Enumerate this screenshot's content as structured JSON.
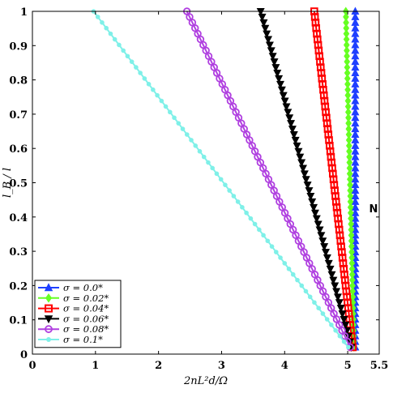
{
  "chart_data": {
    "type": "line",
    "xlabel": "2nL²d/Ω",
    "ylabel": "l_B / l",
    "xlim": [
      0,
      5.5
    ],
    "ylim": [
      0,
      1
    ],
    "xticks": [
      "0",
      "1",
      "2",
      "3",
      "4",
      "5",
      "5.5"
    ],
    "xtick_values": [
      0,
      1,
      2,
      3,
      4,
      5,
      5.5
    ],
    "yticks": [
      "0",
      "0.1",
      "0.2",
      "0.3",
      "0.4",
      "0.5",
      "0.6",
      "0.7",
      "0.8",
      "0.9",
      "1"
    ],
    "ytick_values": [
      0,
      0.1,
      0.2,
      0.3,
      0.4,
      0.5,
      0.6,
      0.7,
      0.8,
      0.9,
      1
    ],
    "grid": false,
    "legend_position": "bottom-left",
    "annotation": "N",
    "series": [
      {
        "name": "σ = 0.0*",
        "color": "#1f3fff",
        "marker": "triangle-up",
        "x_top": 5.12,
        "x_bottom": 5.12
      },
      {
        "name": "σ = 0.02*",
        "color": "#66ff22",
        "marker": "diamond",
        "x_top": 4.97,
        "x_bottom": 5.1
      },
      {
        "name": "σ = 0.04*",
        "color": "#ff0000",
        "marker": "square",
        "x_top": 4.47,
        "x_bottom": 5.08
      },
      {
        "name": "σ = 0.06*",
        "color": "#000000",
        "marker": "triangle-down",
        "x_top": 3.62,
        "x_bottom": 5.06
      },
      {
        "name": "σ = 0.08*",
        "color": "#b040e0",
        "marker": "circle",
        "x_top": 2.45,
        "x_bottom": 5.04
      },
      {
        "name": "σ = 0.1*",
        "color": "#7ff0e8",
        "marker": "dot",
        "x_top": 0.97,
        "x_bottom": 5.01
      }
    ],
    "y_top": 1.0,
    "y_bottom": 0.02
  }
}
